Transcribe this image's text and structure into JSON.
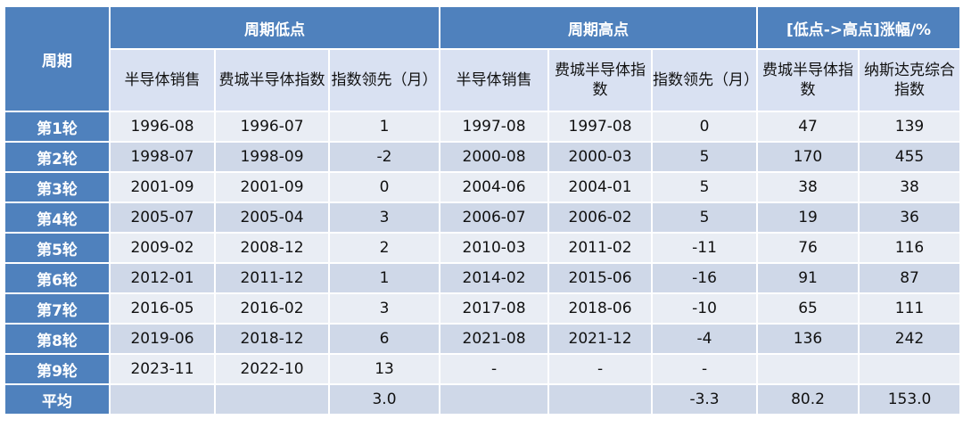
{
  "header": {
    "period": "周期",
    "group_low": "周期低点",
    "group_high": "周期高点",
    "group_rise": "[低点->高点]涨幅/%",
    "sub_low": [
      "半导体销售",
      "费城半导体指数",
      "指数领先（月）"
    ],
    "sub_high": [
      "半导体销售",
      "费城半导体指数",
      "指数领先（月）"
    ],
    "sub_rise": [
      "费城半导体指数",
      "纳斯达克综合指数"
    ]
  },
  "rows": [
    {
      "label": "第1轮",
      "cells": [
        "1996-08",
        "1996-07",
        "1",
        "1997-08",
        "1997-08",
        "0",
        "47",
        "139"
      ]
    },
    {
      "label": "第2轮",
      "cells": [
        "1998-07",
        "1998-09",
        "-2",
        "2000-08",
        "2000-03",
        "5",
        "170",
        "455"
      ]
    },
    {
      "label": "第3轮",
      "cells": [
        "2001-09",
        "2001-09",
        "0",
        "2004-06",
        "2004-01",
        "5",
        "38",
        "38"
      ]
    },
    {
      "label": "第4轮",
      "cells": [
        "2005-07",
        "2005-04",
        "3",
        "2006-07",
        "2006-02",
        "5",
        "19",
        "36"
      ]
    },
    {
      "label": "第5轮",
      "cells": [
        "2009-02",
        "2008-12",
        "2",
        "2010-03",
        "2011-02",
        "-11",
        "76",
        "116"
      ]
    },
    {
      "label": "第6轮",
      "cells": [
        "2012-01",
        "2011-12",
        "1",
        "2014-02",
        "2015-06",
        "-16",
        "91",
        "87"
      ]
    },
    {
      "label": "第7轮",
      "cells": [
        "2016-05",
        "2016-02",
        "3",
        "2017-08",
        "2018-06",
        "-10",
        "65",
        "111"
      ]
    },
    {
      "label": "第8轮",
      "cells": [
        "2019-06",
        "2018-12",
        "6",
        "2021-08",
        "2021-12",
        "-4",
        "136",
        "242"
      ]
    },
    {
      "label": "第9轮",
      "cells": [
        "2023-11",
        "2022-10",
        "13",
        "-",
        "-",
        "-",
        "",
        ""
      ]
    },
    {
      "label": "平均",
      "cells": [
        "",
        "",
        "3.0",
        "",
        "",
        "-3.3",
        "80.2",
        "153.0"
      ]
    }
  ]
}
